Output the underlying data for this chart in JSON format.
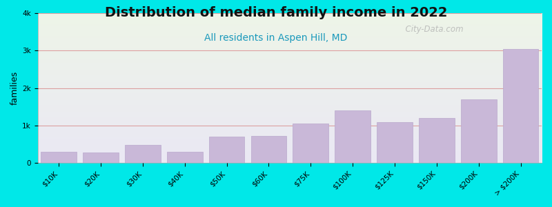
{
  "title": "Distribution of median family income in 2022",
  "subtitle": "All residents in Aspen Hill, MD",
  "ylabel": "families",
  "categories": [
    "$10K",
    "$20K",
    "$30K",
    "$40K",
    "$50K",
    "$60K",
    "$75K",
    "$100K",
    "$125K",
    "$150K",
    "$200K",
    "> $200K"
  ],
  "values": [
    300,
    280,
    480,
    310,
    700,
    730,
    1050,
    1400,
    1100,
    1200,
    1700,
    3050
  ],
  "bar_color": "#c9b8d8",
  "bar_edge_color": "#b8a8cc",
  "background_color": "#00e8e8",
  "plot_bg_top": "#eef5e8",
  "plot_bg_bottom": "#eae8f4",
  "grid_color": "#dda0a0",
  "title_fontsize": 14,
  "subtitle_fontsize": 10,
  "ylabel_fontsize": 9,
  "tick_fontsize": 7.5,
  "ylim": [
    0,
    4000
  ],
  "yticks": [
    0,
    1000,
    2000,
    3000,
    4000
  ],
  "ytick_labels": [
    "0",
    "1k",
    "2k",
    "3k",
    "4k"
  ],
  "watermark": "  City-Data.com"
}
